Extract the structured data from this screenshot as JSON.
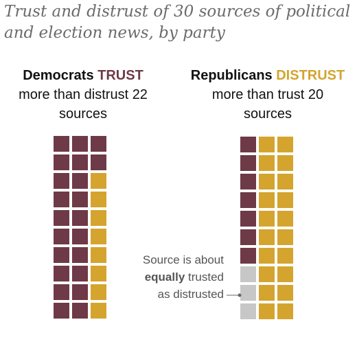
{
  "title": "Trust and distrust of 30 sources of political and election news, by party",
  "colors": {
    "trust": "#6e3a47",
    "distrust": "#d4a42e",
    "equal": "#c7c7c7"
  },
  "left_panel": {
    "party": "Democrats",
    "verb": "TRUST",
    "line2": "more than distrust 22",
    "line3": "sources"
  },
  "right_panel": {
    "party": "Republicans",
    "verb": "DISTRUST",
    "line2": "more than trust 20",
    "line3": "sources"
  },
  "annotation": {
    "line1": "Source is about",
    "bold": "equally",
    "line2_rest": " trusted",
    "line3": "as distrusted"
  },
  "chart_data": {
    "type": "waffle",
    "total_sources": 30,
    "groups": [
      {
        "name": "Democrats",
        "rows": [
          [
            "trust",
            "trust",
            "trust"
          ],
          [
            "trust",
            "trust",
            "trust"
          ],
          [
            "trust",
            "trust",
            "distrust"
          ],
          [
            "trust",
            "trust",
            "distrust"
          ],
          [
            "trust",
            "trust",
            "distrust"
          ],
          [
            "trust",
            "trust",
            "distrust"
          ],
          [
            "trust",
            "trust",
            "distrust"
          ],
          [
            "trust",
            "trust",
            "distrust"
          ],
          [
            "trust",
            "trust",
            "distrust"
          ],
          [
            "trust",
            "trust",
            "distrust"
          ]
        ],
        "counts": {
          "trust": 22,
          "distrust": 8,
          "equal": 0
        }
      },
      {
        "name": "Republicans",
        "rows": [
          [
            "trust",
            "distrust",
            "distrust"
          ],
          [
            "trust",
            "distrust",
            "distrust"
          ],
          [
            "trust",
            "distrust",
            "distrust"
          ],
          [
            "trust",
            "distrust",
            "distrust"
          ],
          [
            "trust",
            "distrust",
            "distrust"
          ],
          [
            "trust",
            "distrust",
            "distrust"
          ],
          [
            "trust",
            "distrust",
            "distrust"
          ],
          [
            "equal",
            "distrust",
            "distrust"
          ],
          [
            "equal",
            "distrust",
            "distrust"
          ],
          [
            "equal",
            "distrust",
            "distrust"
          ]
        ],
        "counts": {
          "trust": 7,
          "distrust": 20,
          "equal": 3
        }
      }
    ]
  }
}
